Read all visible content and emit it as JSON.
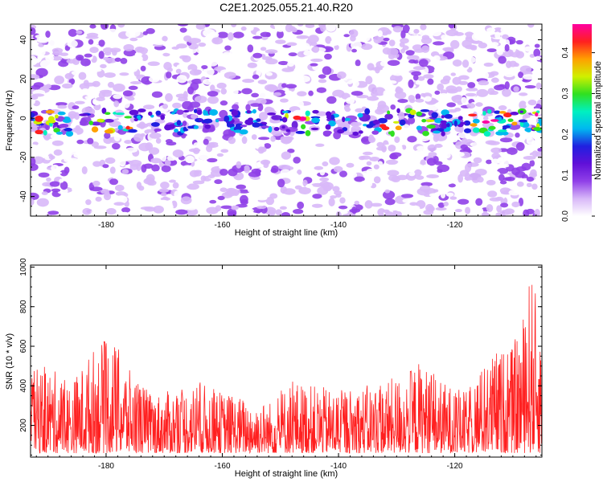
{
  "title": "C2E1.2025.055.21.40.R20",
  "chart_data": [
    {
      "type": "heatmap",
      "title": "C2E1.2025.055.21.40.R20",
      "xlabel": "Height of straight line (km)",
      "ylabel": "Frequency (Hz)",
      "xlim": [
        -193,
        -105
      ],
      "ylim": [
        -50,
        48
      ],
      "xticks": [
        "-180",
        "-160",
        "-140",
        "-120"
      ],
      "yticks": [
        "-40",
        "-20",
        "0",
        "20",
        "40"
      ],
      "colorbar": {
        "label": "Normalized spectral amplitude",
        "range": [
          0.0,
          0.47
        ],
        "ticks": [
          "0.0",
          "0.1",
          "0.2",
          "0.3",
          "0.4"
        ],
        "colors": [
          "#ffffff",
          "#d8b8f8",
          "#9040e8",
          "#6010d8",
          "#2020e0",
          "#00b8f0",
          "#00f0c0",
          "#30e020",
          "#d0f000",
          "#ffa000",
          "#ff2020",
          "#ff00a0"
        ]
      },
      "ridge": {
        "frequency": -2,
        "strong_near_x": [
          -190,
          -181,
          -178,
          -147,
          -131,
          -126,
          -115,
          -110,
          -107
        ]
      },
      "grid": false
    },
    {
      "type": "line",
      "xlabel": "Height of straight line (km)",
      "ylabel": "SNR (10 * v/v)",
      "xlim": [
        -193,
        -105
      ],
      "ylim": [
        40,
        1010
      ],
      "xticks": [
        "-180",
        "-160",
        "-140",
        "-120"
      ],
      "yticks": [
        "200",
        "400",
        "600",
        "800",
        "1000"
      ],
      "series_color": "#ff2020",
      "envelope": [
        {
          "x": -193,
          "y": 480
        },
        {
          "x": -190,
          "y": 500
        },
        {
          "x": -186,
          "y": 420
        },
        {
          "x": -182,
          "y": 600
        },
        {
          "x": -179,
          "y": 650
        },
        {
          "x": -176,
          "y": 480
        },
        {
          "x": -172,
          "y": 360
        },
        {
          "x": -168,
          "y": 380
        },
        {
          "x": -164,
          "y": 420
        },
        {
          "x": -160,
          "y": 370
        },
        {
          "x": -156,
          "y": 340
        },
        {
          "x": -152,
          "y": 320
        },
        {
          "x": -148,
          "y": 430
        },
        {
          "x": -144,
          "y": 400
        },
        {
          "x": -140,
          "y": 380
        },
        {
          "x": -136,
          "y": 400
        },
        {
          "x": -132,
          "y": 420
        },
        {
          "x": -128,
          "y": 480
        },
        {
          "x": -126,
          "y": 530
        },
        {
          "x": -122,
          "y": 420
        },
        {
          "x": -118,
          "y": 370
        },
        {
          "x": -116,
          "y": 470
        },
        {
          "x": -113,
          "y": 580
        },
        {
          "x": -110,
          "y": 600
        },
        {
          "x": -108,
          "y": 780
        },
        {
          "x": -107,
          "y": 1000
        },
        {
          "x": -105,
          "y": 720
        }
      ],
      "grid": false
    }
  ]
}
